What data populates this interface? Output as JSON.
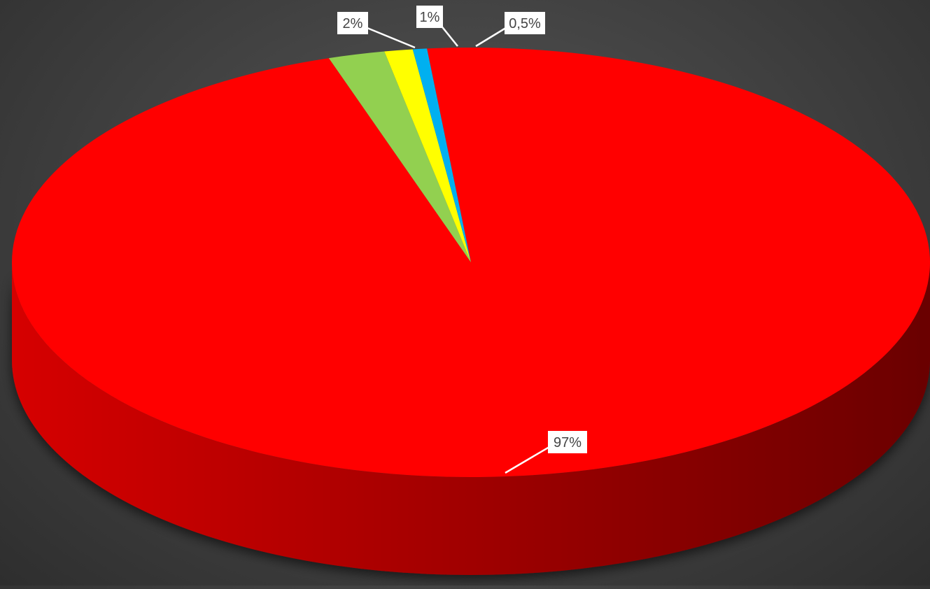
{
  "chart_data": {
    "type": "pie",
    "style": "3d",
    "slices": [
      {
        "label": "97%",
        "value": 97,
        "color": "#ff0000",
        "side_color": "#b00000"
      },
      {
        "label": "2%",
        "value": 2,
        "color": "#92d050",
        "side_color": "#5f8a33"
      },
      {
        "label": "1%",
        "value": 1,
        "color": "#ffff00",
        "side_color": "#aaaa00"
      },
      {
        "label": "0,5%",
        "value": 0.5,
        "color": "#00b0f0",
        "side_color": "#0077a0"
      }
    ],
    "data_labels": true,
    "legend": "none",
    "title": "",
    "background": "#444444"
  }
}
